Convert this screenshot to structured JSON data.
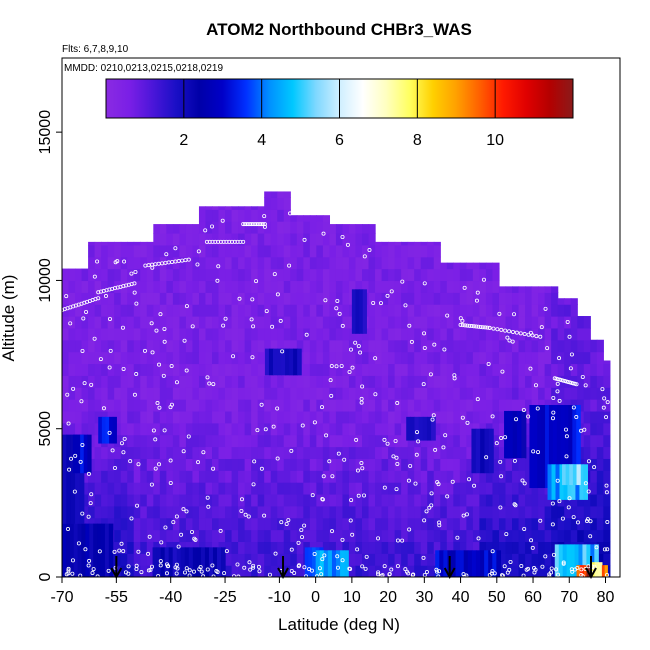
{
  "chart_data": {
    "type": "heatmap",
    "title": "ATOM2 Northbound CHBr3_WAS",
    "flights_label": "Flts: 6,7,8,9,10",
    "dates_label": "MMDD: 0210,0213,0215,0218,0219",
    "xlabel": "Latitude (deg N)",
    "ylabel": "Altitude (m)",
    "xlim": [
      -70,
      84
    ],
    "ylim": [
      0,
      17500
    ],
    "x_ticks": [
      -70,
      -55,
      -40,
      -25,
      -10,
      0,
      10,
      20,
      30,
      40,
      50,
      60,
      70,
      80
    ],
    "x_tick_labels": [
      "-70",
      "-55",
      "-40",
      "-25",
      "-10",
      "0",
      "10",
      "20",
      "30",
      "40",
      "50",
      "60",
      "70",
      "80"
    ],
    "y_ticks": [
      0,
      5000,
      10000,
      15000
    ],
    "y_tick_labels": [
      "0",
      "5000",
      "10000",
      "15000"
    ],
    "colorbar": {
      "range": [
        0,
        12
      ],
      "ticks": [
        2,
        4,
        6,
        8,
        10
      ],
      "tick_labels": [
        "2",
        "4",
        "6",
        "8",
        "10"
      ],
      "colors": [
        "#8a2be2",
        "#7a1fe6",
        "#4b16d9",
        "#1a0fc6",
        "#0000a8",
        "#0000c8",
        "#0030ff",
        "#0090ff",
        "#00c8ff",
        "#7fd8ff",
        "#cfefff",
        "#ffffff",
        "#ffffc0",
        "#ffff60",
        "#ffd000",
        "#ffa000",
        "#ff6000",
        "#ff1a00",
        "#e00000",
        "#b40000",
        "#8b1a1a"
      ]
    },
    "sections": [
      {
        "lat": [
          -70,
          -62
        ],
        "ceiling": 10400
      },
      {
        "lat": [
          -62,
          -45
        ],
        "ceiling": 11300
      },
      {
        "lat": [
          -45,
          -33
        ],
        "ceiling": 11900
      },
      {
        "lat": [
          -33,
          -14
        ],
        "ceiling": 12500
      },
      {
        "lat": [
          -14,
          -7
        ],
        "ceiling": 13000
      },
      {
        "lat": [
          -7,
          3
        ],
        "ceiling": 12200
      },
      {
        "lat": [
          3,
          17
        ],
        "ceiling": 11900
      },
      {
        "lat": [
          17,
          35
        ],
        "ceiling": 11300
      },
      {
        "lat": [
          35,
          50
        ],
        "ceiling": 10600
      },
      {
        "lat": [
          50,
          66
        ],
        "ceiling": 9800
      },
      {
        "lat": [
          66,
          72
        ],
        "ceiling": 9400
      },
      {
        "lat": [
          72,
          76
        ],
        "ceiling": 8800
      },
      {
        "lat": [
          76,
          79
        ],
        "ceiling": 8000
      },
      {
        "lat": [
          79,
          81
        ],
        "ceiling": 7300
      }
    ],
    "features": [
      {
        "lat": -70,
        "lon_w": 14,
        "alt": 0,
        "alt_h": 1800,
        "value": 2.4
      },
      {
        "lat": -70,
        "lon_w": 6,
        "alt": 1800,
        "alt_h": 3000,
        "value": 2.0
      },
      {
        "lat": -67,
        "lon_w": 5,
        "alt": 3500,
        "alt_h": 1300,
        "value": 3.0
      },
      {
        "lat": -60,
        "lon_w": 5,
        "alt": 4500,
        "alt_h": 900,
        "value": 3.2
      },
      {
        "lat": -45,
        "lon_w": 20,
        "alt": 0,
        "alt_h": 1000,
        "value": 2.1
      },
      {
        "lat": -14,
        "lon_w": 10,
        "alt": 6800,
        "alt_h": 900,
        "value": 2.0
      },
      {
        "lat": -3,
        "lon_w": 5,
        "alt": 0,
        "alt_h": 1000,
        "value": 3.4
      },
      {
        "lat": 0,
        "lon_w": 9,
        "alt": 0,
        "alt_h": 900,
        "value": 4.2
      },
      {
        "lat": 10,
        "lon_w": 4,
        "alt": 8200,
        "alt_h": 1500,
        "value": 2.0
      },
      {
        "lat": 25,
        "lon_w": 8,
        "alt": 4600,
        "alt_h": 800,
        "value": 1.8
      },
      {
        "lat": 33,
        "lon_w": 18,
        "alt": 0,
        "alt_h": 900,
        "value": 3.0
      },
      {
        "lat": 43,
        "lon_w": 6,
        "alt": 3500,
        "alt_h": 1500,
        "value": 2.0
      },
      {
        "lat": 52,
        "lon_w": 6,
        "alt": 4000,
        "alt_h": 1600,
        "value": 2.6
      },
      {
        "lat": 59,
        "lon_w": 14,
        "alt": 3000,
        "alt_h": 2800,
        "value": 3.2
      },
      {
        "lat": 64,
        "lon_w": 11,
        "alt": 2600,
        "alt_h": 1200,
        "value": 4.6
      },
      {
        "lat": 66,
        "lon_w": 12,
        "alt": 0,
        "alt_h": 1100,
        "value": 4.8
      },
      {
        "lat": 68,
        "lon_w": 5,
        "alt": 3100,
        "alt_h": 700,
        "value": 5.4
      },
      {
        "lat": 72,
        "lon_w": 2,
        "alt": 0,
        "alt_h": 400,
        "value": 9.8
      },
      {
        "lat": 74,
        "lon_w": 1.5,
        "alt": 0,
        "alt_h": 400,
        "value": 11.5
      },
      {
        "lat": 76,
        "lon_w": 3,
        "alt": 0,
        "alt_h": 500,
        "value": 7.2
      },
      {
        "lat": 79,
        "lon_w": 1.5,
        "alt": 0,
        "alt_h": 400,
        "value": 10.0
      }
    ],
    "profile_arrows_lat": [
      -55,
      -9,
      37,
      76
    ]
  }
}
